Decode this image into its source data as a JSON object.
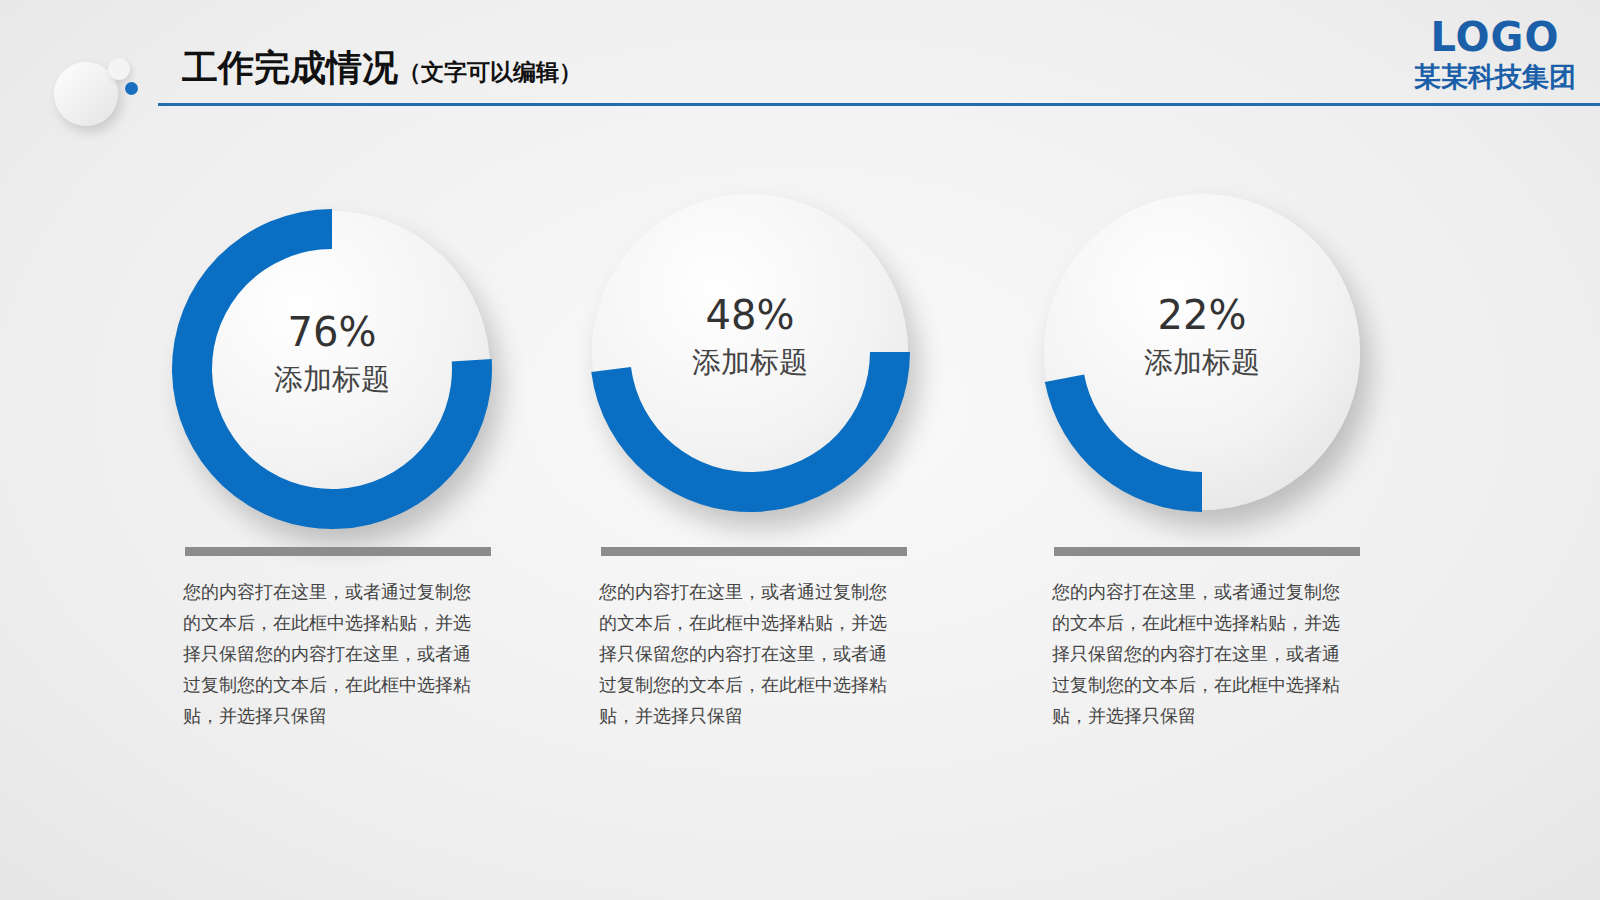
{
  "header": {
    "title": "工作完成情况",
    "subtitle": "（文字可以编辑）",
    "logo": "LOGO",
    "company": "某某科技集团"
  },
  "chart_data": [
    {
      "type": "pie",
      "title": "添加标题",
      "values": [
        76
      ],
      "value_labels": [
        "76%"
      ],
      "total": 100,
      "color": "#0a6fc2",
      "data_labels": true,
      "annotation": "您的内容打在这里，或者通过复制您的文本后，在此框中选择粘贴，并选择只保留您的内容打在这里，或者通过复制您的文本后，在此框中选择粘贴，并选择只保留"
    },
    {
      "type": "pie",
      "title": "添加标题",
      "values": [
        48
      ],
      "value_labels": [
        "48%"
      ],
      "total": 100,
      "color": "#0a6fc2",
      "data_labels": true,
      "annotation": "您的内容打在这里，或者通过复制您的文本后，在此框中选择粘贴，并选择只保留您的内容打在这里，或者通过复制您的文本后，在此框中选择粘贴，并选择只保留"
    },
    {
      "type": "pie",
      "title": "添加标题",
      "values": [
        22
      ],
      "value_labels": [
        "22%"
      ],
      "total": 100,
      "color": "#0a6fc2",
      "data_labels": true,
      "annotation": "您的内容打在这里，或者通过复制您的文本后，在此框中选择粘贴，并选择只保留您的内容打在这里，或者通过复制您的文本后，在此框中选择粘贴，并选择只保留"
    }
  ]
}
